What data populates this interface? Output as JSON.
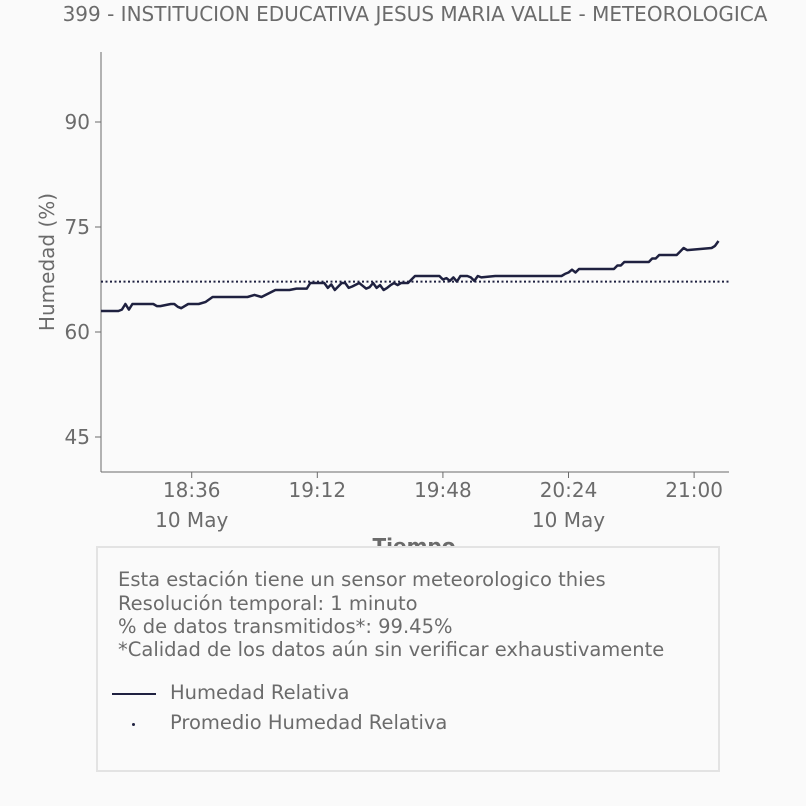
{
  "chart_data": {
    "type": "line",
    "title": "399 - INSTITUCION EDUCATIVA JESUS MARIA VALLE - METEOROLOGICA",
    "xlabel": "Tiempo",
    "ylabel": "Humedad (%)",
    "x_ticks": [
      "18:36",
      "19:12",
      "19:48",
      "20:24",
      "21:00"
    ],
    "x_date_labels": [
      "10 May",
      "",
      "",
      "10 May",
      ""
    ],
    "x_range": [
      "18:10",
      "21:10"
    ],
    "y_ticks": [
      45,
      60,
      75,
      90
    ],
    "ylim": [
      40,
      100
    ],
    "grid": false,
    "series": [
      {
        "name": "Humedad Relativa",
        "color": "#1f2140",
        "style": "solid",
        "x": [
          "18:10",
          "18:15",
          "18:16",
          "18:17",
          "18:18",
          "18:19",
          "18:20",
          "18:25",
          "18:26",
          "18:27",
          "18:30",
          "18:31",
          "18:32",
          "18:33",
          "18:35",
          "18:37",
          "18:38",
          "18:40",
          "18:42",
          "18:50",
          "18:52",
          "18:54",
          "18:56",
          "19:00",
          "19:02",
          "19:04",
          "19:06",
          "19:09",
          "19:10",
          "19:12",
          "19:13",
          "19:14",
          "19:15",
          "19:16",
          "19:17",
          "19:19",
          "19:20",
          "19:21",
          "19:22",
          "19:24",
          "19:25",
          "19:26",
          "19:27",
          "19:28",
          "19:29",
          "19:30",
          "19:31",
          "19:32",
          "19:33",
          "19:34",
          "19:35",
          "19:36",
          "19:38",
          "19:40",
          "19:42",
          "19:43",
          "19:47",
          "19:48",
          "19:49",
          "19:50",
          "19:51",
          "19:52",
          "19:53",
          "19:54",
          "19:55",
          "19:56",
          "19:57",
          "19:58",
          "19:59",
          "20:03",
          "20:04",
          "20:05",
          "20:06",
          "20:08",
          "20:09",
          "20:10",
          "20:22",
          "20:23",
          "20:24",
          "20:25",
          "20:26",
          "20:27",
          "20:28",
          "20:29",
          "20:30",
          "20:32",
          "20:37",
          "20:38",
          "20:39",
          "20:40",
          "20:47",
          "20:48",
          "20:49",
          "20:50",
          "20:51",
          "20:55",
          "20:56",
          "20:57",
          "20:58",
          "21:05",
          "21:06",
          "21:07"
        ],
        "y": [
          63.0,
          63.0,
          63.2,
          64.0,
          63.2,
          64.0,
          64.0,
          64.0,
          63.7,
          63.7,
          64.0,
          64.0,
          63.6,
          63.4,
          64.0,
          64.0,
          64.0,
          64.3,
          65.0,
          65.0,
          65.0,
          65.3,
          65.0,
          66.0,
          66.0,
          66.0,
          66.2,
          66.2,
          67.0,
          67.0,
          67.0,
          67.0,
          66.3,
          66.8,
          66.0,
          67.0,
          67.0,
          66.3,
          66.5,
          67.0,
          66.6,
          66.2,
          66.4,
          67.0,
          66.3,
          66.7,
          66.0,
          66.3,
          66.7,
          67.0,
          66.7,
          67.0,
          67.0,
          68.0,
          68.0,
          68.0,
          68.0,
          67.5,
          67.7,
          67.3,
          67.8,
          67.2,
          68.0,
          68.0,
          68.0,
          67.8,
          67.3,
          68.0,
          67.8,
          68.0,
          68.0,
          68.0,
          68.0,
          68.0,
          68.0,
          68.0,
          68.0,
          68.3,
          68.5,
          68.9,
          68.5,
          69.0,
          69.0,
          69.0,
          69.0,
          69.0,
          69.0,
          69.5,
          69.5,
          70.0,
          70.0,
          70.5,
          70.5,
          71.0,
          71.0,
          71.0,
          71.5,
          72.0,
          71.7,
          72.0,
          72.3,
          73.0
        ]
      },
      {
        "name": "Promedio Humedad Relativa",
        "color": "#1f2140",
        "style": "dotted",
        "value": 67.2
      }
    ]
  },
  "legend": {
    "info": [
      "Esta estación tiene un sensor meteorologico thies",
      "Resolución temporal: 1 minuto",
      "% de datos transmitidos*: 99.45%",
      "*Calidad de los datos aún sin verificar exhaustivamente"
    ],
    "series_labels": [
      "Humedad Relativa",
      "Promedio Humedad Relativa"
    ]
  }
}
